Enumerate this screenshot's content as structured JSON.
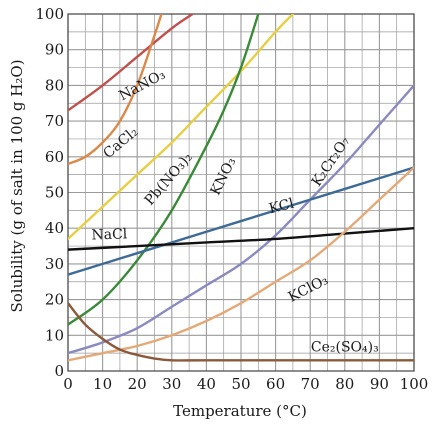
{
  "chart_data": {
    "type": "line",
    "title": "",
    "xlabel": "Temperature (°C)",
    "ylabel": "Solubility (g of salt in 100 g H₂O)",
    "xlim": [
      0,
      100
    ],
    "ylim": [
      0,
      100
    ],
    "xticks": [
      "0",
      "10",
      "20",
      "30",
      "40",
      "50",
      "60",
      "70",
      "80",
      "90",
      "100"
    ],
    "yticks": [
      "0",
      "10",
      "20",
      "30",
      "40",
      "50",
      "60",
      "70",
      "80",
      "90",
      "100"
    ],
    "grid": true,
    "legend": "none (curves labeled directly)",
    "series": [
      {
        "name": "NaNO3",
        "label_text": "NaNO₃",
        "color": "#c0504d",
        "x": [
          0,
          10,
          20,
          30,
          36
        ],
        "y": [
          73,
          80,
          88,
          96,
          100
        ]
      },
      {
        "name": "CaCl2",
        "label_text": "CaCl₂",
        "color": "#d98a4a",
        "x": [
          0,
          5,
          10,
          15,
          20,
          25,
          27
        ],
        "y": [
          58,
          60,
          64,
          70,
          80,
          94,
          100
        ]
      },
      {
        "name": "Pb(NO3)2",
        "label_text": "Pb(NO₃)₂",
        "color": "#e6cf45",
        "x": [
          0,
          10,
          20,
          30,
          40,
          50,
          60,
          65
        ],
        "y": [
          37,
          46,
          55,
          64,
          74,
          84,
          95,
          100
        ]
      },
      {
        "name": "KNO3",
        "label_text": "KNO₃",
        "color": "#3a8a3a",
        "x": [
          0,
          10,
          20,
          30,
          40,
          45,
          50,
          55
        ],
        "y": [
          13,
          20,
          31,
          45,
          63,
          73,
          85,
          100
        ]
      },
      {
        "name": "K2Cr2O7",
        "label_text": "K₂Cr₂O₇",
        "color": "#8a8ac0",
        "x": [
          0,
          10,
          20,
          30,
          40,
          50,
          60,
          70,
          80,
          90,
          100
        ],
        "y": [
          5,
          8,
          12,
          18,
          24,
          30,
          38,
          48,
          58,
          69,
          80
        ]
      },
      {
        "name": "KCl",
        "label_text": "KCl",
        "color": "#3d6a96",
        "x": [
          0,
          20,
          40,
          60,
          80,
          100
        ],
        "y": [
          27,
          33,
          39,
          45,
          51,
          57
        ]
      },
      {
        "name": "NaCl",
        "label_text": "NaCl",
        "color": "#111111",
        "x": [
          0,
          20,
          40,
          60,
          80,
          100
        ],
        "y": [
          34,
          35,
          36,
          37,
          38.5,
          40
        ]
      },
      {
        "name": "KClO3",
        "label_text": "KClO₃",
        "color": "#e3a978",
        "x": [
          0,
          10,
          20,
          30,
          40,
          50,
          60,
          70,
          80,
          90,
          100
        ],
        "y": [
          3,
          5,
          7,
          10,
          14,
          19,
          25,
          31,
          39,
          48,
          57
        ]
      },
      {
        "name": "Ce2(SO4)3",
        "label_text": "Ce₂(SO₄)₃",
        "color": "#8b5a3c",
        "x": [
          0,
          5,
          10,
          15,
          20,
          25,
          30,
          40,
          60,
          80,
          100
        ],
        "y": [
          19,
          13,
          9,
          6,
          4.5,
          3.5,
          3,
          3,
          3,
          3,
          3
        ]
      }
    ]
  },
  "colors": {
    "frame_background": "#2b2b2b",
    "plot_background": "#ffffff",
    "grid": "#9a9a9a"
  }
}
